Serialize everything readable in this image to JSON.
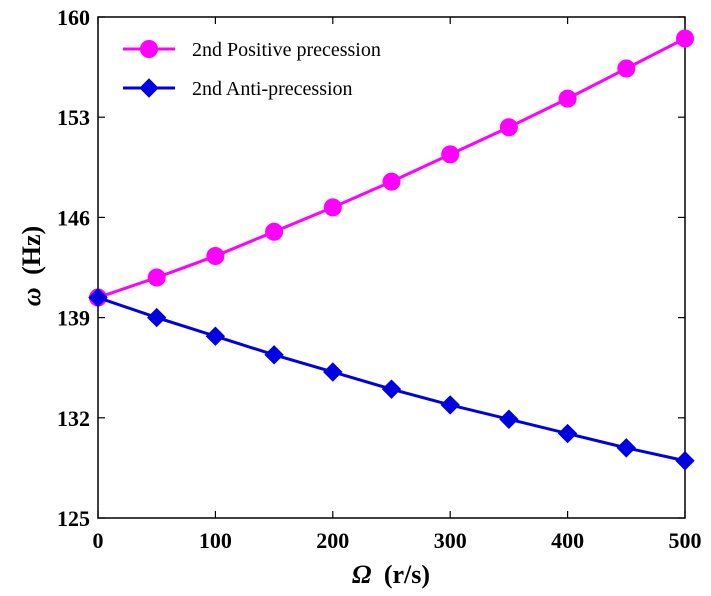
{
  "chart_data": {
    "type": "line",
    "title": "",
    "xlabel": "Ω (r/s)",
    "xlabel_symbol": "Ω",
    "xlabel_unit": "(r/s)",
    "ylabel": "ω (Hz)",
    "ylabel_symbol": "ω",
    "ylabel_unit": "(Hz)",
    "xlim": [
      0,
      500
    ],
    "ylim": [
      125,
      160
    ],
    "xticks": [
      0,
      100,
      200,
      300,
      400,
      500
    ],
    "yticks": [
      125,
      132,
      139,
      146,
      153,
      160
    ],
    "grid": false,
    "legend_position": "top-left",
    "x": [
      0,
      50,
      100,
      150,
      200,
      250,
      300,
      350,
      400,
      450,
      500
    ],
    "series": [
      {
        "name": "2nd Positive precession",
        "color": "#ff00ff",
        "marker": "circle",
        "values": [
          140.4,
          141.8,
          143.3,
          145.0,
          146.7,
          148.5,
          150.4,
          152.3,
          154.3,
          156.4,
          158.5
        ]
      },
      {
        "name": "2nd Anti-precession",
        "color": "#0000e0",
        "marker": "diamond",
        "values": [
          140.4,
          139.0,
          137.7,
          136.4,
          135.2,
          134.0,
          132.9,
          131.9,
          130.9,
          129.9,
          129.0
        ]
      }
    ]
  }
}
